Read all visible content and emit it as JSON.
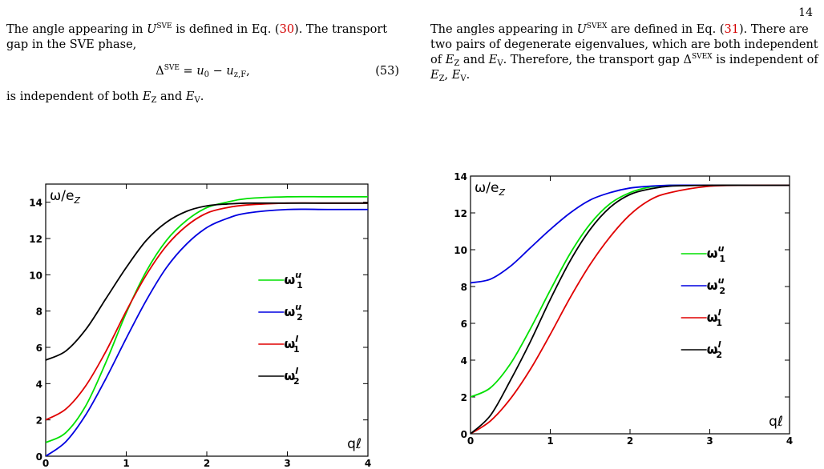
{
  "page_number": "14",
  "left_text": {
    "p1_a": "The angle appearing in ",
    "p1_b": " is defined in Eq. (",
    "p1_ref": "30",
    "p1_c": "). The transport gap in the SVE phase,",
    "eq_lhs": "Δ",
    "eq_rhs": " = u",
    "eq_num": "(53)",
    "p2_a": "is independent of both ",
    "p2_b": " and ",
    "p2_c": "."
  },
  "right_text": {
    "p1_a": "The angles appearing in ",
    "p1_b": " are defined in Eq. (",
    "p1_ref": "31",
    "p1_c": "). There are two pairs of degenerate eigenvalues, which are both independent of ",
    "p1_d": " and ",
    "p1_e": ". Therefore, the transport gap ",
    "p1_f": " is independent of ",
    "p1_g": ", "
  },
  "symbols": {
    "U": "U",
    "SVE": "SVE",
    "SVEX": "SVEX",
    "E": "E",
    "Z": "Z",
    "V": "V",
    "u0": "0",
    "minus_u": " − u",
    "zF": "z,F",
    "comma": ",",
    "period": "."
  },
  "chart_data": [
    {
      "type": "line",
      "ylabel": "ω/e",
      "ylabel_sub": "Z",
      "xlabel": "qℓ",
      "xlim": [
        0,
        4
      ],
      "ylim": [
        0,
        15
      ],
      "x_ticks": [
        "0",
        "1",
        "2",
        "3",
        "4"
      ],
      "y_ticks": [
        "0",
        "2",
        "4",
        "6",
        "8",
        "10",
        "12",
        "14"
      ],
      "grid": false,
      "legend_placement": "right-middle",
      "series": [
        {
          "name": "ω",
          "sup": "u",
          "sub": "1",
          "color": "#00e000",
          "x": [
            0,
            0.25,
            0.5,
            0.75,
            1,
            1.25,
            1.5,
            1.75,
            2,
            2.25,
            2.5,
            3,
            3.5,
            4
          ],
          "y": [
            0.75,
            1.3,
            2.8,
            5.2,
            7.9,
            10.2,
            11.9,
            13.0,
            13.7,
            14.0,
            14.2,
            14.3,
            14.3,
            14.3
          ]
        },
        {
          "name": "ω",
          "sup": "u",
          "sub": "2",
          "color": "#0000e0",
          "x": [
            0,
            0.25,
            0.5,
            0.75,
            1,
            1.25,
            1.5,
            1.75,
            2,
            2.25,
            2.5,
            3,
            3.5,
            4
          ],
          "y": [
            0.0,
            0.8,
            2.3,
            4.3,
            6.5,
            8.6,
            10.4,
            11.7,
            12.6,
            13.1,
            13.4,
            13.6,
            13.6,
            13.6
          ]
        },
        {
          "name": "ω",
          "sup": "l",
          "sub": "1",
          "color": "#e00000",
          "x": [
            0,
            0.25,
            0.5,
            0.75,
            1,
            1.25,
            1.5,
            1.75,
            2,
            2.25,
            2.5,
            3,
            3.5,
            4
          ],
          "y": [
            2.0,
            2.6,
            3.9,
            5.8,
            8.0,
            10.0,
            11.6,
            12.7,
            13.4,
            13.7,
            13.85,
            13.95,
            13.95,
            13.95
          ]
        },
        {
          "name": "ω",
          "sup": "l",
          "sub": "2",
          "color": "#000000",
          "x": [
            0,
            0.25,
            0.5,
            0.75,
            1,
            1.25,
            1.5,
            1.75,
            2,
            2.25,
            2.5,
            3,
            3.5,
            4
          ],
          "y": [
            5.3,
            5.8,
            7.0,
            8.7,
            10.4,
            11.9,
            12.9,
            13.5,
            13.8,
            13.9,
            13.95,
            13.95,
            13.95,
            13.95
          ]
        }
      ]
    },
    {
      "type": "line",
      "ylabel": "ω/e",
      "ylabel_sub": "Z",
      "xlabel": "qℓ",
      "xlim": [
        0,
        4
      ],
      "ylim": [
        0,
        14
      ],
      "x_ticks": [
        "0",
        "1",
        "2",
        "3",
        "4"
      ],
      "y_ticks": [
        "0",
        "2",
        "4",
        "6",
        "8",
        "10",
        "12",
        "14"
      ],
      "grid": false,
      "legend_placement": "right-middle",
      "series": [
        {
          "name": "ω",
          "sup": "u",
          "sub": "1",
          "color": "#00e000",
          "x": [
            0,
            0.25,
            0.5,
            0.75,
            1,
            1.25,
            1.5,
            1.75,
            2,
            2.25,
            2.5,
            3,
            3.5,
            4
          ],
          "y": [
            2.0,
            2.5,
            3.8,
            5.7,
            7.8,
            9.8,
            11.4,
            12.5,
            13.1,
            13.4,
            13.5,
            13.5,
            13.5,
            13.5
          ]
        },
        {
          "name": "ω",
          "sup": "u",
          "sub": "2",
          "color": "#0000e0",
          "x": [
            0,
            0.25,
            0.5,
            0.75,
            1,
            1.25,
            1.5,
            1.75,
            2,
            2.25,
            2.5,
            3,
            3.5,
            4
          ],
          "y": [
            8.2,
            8.4,
            9.1,
            10.1,
            11.1,
            12.0,
            12.7,
            13.1,
            13.35,
            13.45,
            13.5,
            13.5,
            13.5,
            13.5
          ]
        },
        {
          "name": "ω",
          "sup": "l",
          "sub": "1",
          "color": "#e00000",
          "x": [
            0,
            0.25,
            0.5,
            0.75,
            1,
            1.25,
            1.5,
            1.75,
            2,
            2.25,
            2.5,
            3,
            3.5,
            4
          ],
          "y": [
            0.0,
            0.7,
            1.9,
            3.5,
            5.4,
            7.4,
            9.2,
            10.7,
            11.9,
            12.7,
            13.1,
            13.45,
            13.5,
            13.5
          ]
        },
        {
          "name": "ω",
          "sup": "l",
          "sub": "2",
          "color": "#000000",
          "x": [
            0,
            0.25,
            0.5,
            0.75,
            1,
            1.25,
            1.5,
            1.75,
            2,
            2.25,
            2.5,
            3,
            3.5,
            4
          ],
          "y": [
            0.0,
            1.0,
            2.9,
            5.0,
            7.3,
            9.4,
            11.1,
            12.3,
            13.0,
            13.3,
            13.45,
            13.5,
            13.5,
            13.5
          ]
        }
      ]
    }
  ]
}
